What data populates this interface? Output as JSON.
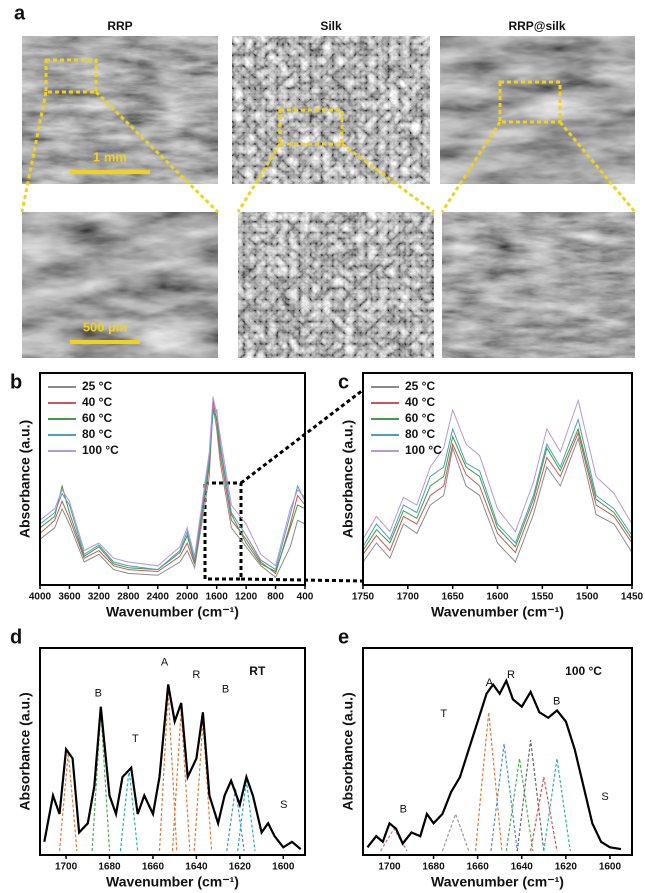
{
  "figure": {
    "panel_labels": [
      "a",
      "b",
      "c",
      "d",
      "e"
    ],
    "sem": {
      "titles": [
        "RRP",
        "Silk",
        "RRP@silk"
      ],
      "scale_bars": [
        "1 mm",
        "500 µm"
      ]
    }
  },
  "chart_data": [
    {
      "type": "line",
      "xlabel": "Wavenumber (cm⁻¹)",
      "ylabel": "Absorbance (a.u.)",
      "xlim": [
        4000,
        400
      ],
      "xticks": [
        4000,
        3600,
        3200,
        2800,
        2400,
        2000,
        1600,
        1200,
        800,
        400
      ],
      "ylim": [
        0,
        1
      ],
      "legend": true,
      "series": [
        {
          "name": "25 °C",
          "color": "#8a8a8a",
          "x": [
            4000,
            3800,
            3700,
            3600,
            3400,
            3200,
            3000,
            2800,
            2400,
            2100,
            2000,
            1900,
            1700,
            1650,
            1600,
            1550,
            1400,
            1200,
            1000,
            800,
            600,
            500,
            400
          ],
          "values": [
            0.22,
            0.28,
            0.38,
            0.3,
            0.1,
            0.14,
            0.06,
            0.04,
            0.03,
            0.1,
            0.16,
            0.07,
            0.55,
            0.92,
            0.8,
            0.62,
            0.28,
            0.18,
            0.08,
            0.02,
            0.18,
            0.32,
            0.3
          ]
        },
        {
          "name": "40 °C",
          "color": "#cc5555",
          "x": [
            4000,
            3800,
            3700,
            3600,
            3400,
            3200,
            3000,
            2800,
            2400,
            2100,
            2000,
            1900,
            1700,
            1650,
            1600,
            1550,
            1400,
            1200,
            1000,
            800,
            600,
            500,
            400
          ],
          "values": [
            0.25,
            0.32,
            0.42,
            0.33,
            0.12,
            0.16,
            0.08,
            0.06,
            0.05,
            0.13,
            0.2,
            0.09,
            0.6,
            0.95,
            0.84,
            0.66,
            0.32,
            0.22,
            0.1,
            0.04,
            0.3,
            0.45,
            0.4
          ]
        },
        {
          "name": "60 °C",
          "color": "#3e9e45",
          "x": [
            4000,
            3800,
            3700,
            3600,
            3400,
            3200,
            3000,
            2800,
            2400,
            2100,
            2000,
            1900,
            1700,
            1650,
            1600,
            1550,
            1400,
            1200,
            1000,
            800,
            600,
            500,
            400
          ],
          "values": [
            0.28,
            0.34,
            0.5,
            0.36,
            0.13,
            0.18,
            0.09,
            0.07,
            0.06,
            0.15,
            0.24,
            0.1,
            0.62,
            0.9,
            0.86,
            0.7,
            0.35,
            0.2,
            0.09,
            0.05,
            0.28,
            0.4,
            0.38
          ]
        },
        {
          "name": "80 °C",
          "color": "#4a9fc0",
          "x": [
            4000,
            3800,
            3700,
            3600,
            3400,
            3200,
            3000,
            2800,
            2400,
            2100,
            2000,
            1900,
            1700,
            1650,
            1600,
            1550,
            1400,
            1200,
            1000,
            800,
            600,
            500,
            400
          ],
          "values": [
            0.3,
            0.36,
            0.46,
            0.4,
            0.14,
            0.19,
            0.1,
            0.08,
            0.06,
            0.16,
            0.26,
            0.11,
            0.65,
            0.88,
            0.9,
            0.72,
            0.36,
            0.24,
            0.11,
            0.06,
            0.35,
            0.5,
            0.42
          ]
        },
        {
          "name": "100 °C",
          "color": "#b897d8",
          "x": [
            4000,
            3800,
            3700,
            3600,
            3400,
            3200,
            3000,
            2800,
            2400,
            2100,
            2000,
            1900,
            1700,
            1650,
            1600,
            1550,
            1400,
            1200,
            1000,
            800,
            600,
            500,
            400
          ],
          "values": [
            0.32,
            0.38,
            0.48,
            0.42,
            0.16,
            0.2,
            0.12,
            0.1,
            0.08,
            0.18,
            0.28,
            0.13,
            0.68,
            0.97,
            0.88,
            0.76,
            0.4,
            0.3,
            0.14,
            0.08,
            0.38,
            0.48,
            0.44
          ]
        }
      ]
    },
    {
      "type": "line",
      "xlabel": "Wavenumber (cm⁻¹)",
      "ylabel": "Absorbance (a.u.)",
      "xlim": [
        1750,
        1450
      ],
      "xticks": [
        1750,
        1700,
        1650,
        1600,
        1550,
        1500,
        1450
      ],
      "ylim": [
        0,
        1
      ],
      "legend": true,
      "series": [
        {
          "name": "25 °C",
          "color": "#8a8a8a",
          "x": [
            1750,
            1735,
            1720,
            1705,
            1690,
            1675,
            1660,
            1650,
            1635,
            1620,
            1600,
            1580,
            1560,
            1545,
            1530,
            1510,
            1490,
            1470,
            1450
          ],
          "values": [
            0.1,
            0.2,
            0.12,
            0.3,
            0.25,
            0.4,
            0.45,
            0.7,
            0.5,
            0.45,
            0.2,
            0.1,
            0.35,
            0.6,
            0.5,
            0.75,
            0.35,
            0.3,
            0.15
          ]
        },
        {
          "name": "40 °C",
          "color": "#cc5555",
          "x": [
            1750,
            1735,
            1720,
            1705,
            1690,
            1675,
            1660,
            1650,
            1635,
            1620,
            1600,
            1580,
            1560,
            1545,
            1530,
            1510,
            1490,
            1470,
            1450
          ],
          "values": [
            0.14,
            0.24,
            0.16,
            0.34,
            0.3,
            0.45,
            0.5,
            0.72,
            0.56,
            0.5,
            0.25,
            0.15,
            0.4,
            0.65,
            0.55,
            0.78,
            0.4,
            0.34,
            0.2
          ]
        },
        {
          "name": "60 °C",
          "color": "#3e9e45",
          "x": [
            1750,
            1735,
            1720,
            1705,
            1690,
            1675,
            1660,
            1650,
            1635,
            1620,
            1600,
            1580,
            1560,
            1545,
            1530,
            1510,
            1490,
            1470,
            1450
          ],
          "values": [
            0.16,
            0.27,
            0.2,
            0.37,
            0.33,
            0.5,
            0.55,
            0.76,
            0.6,
            0.55,
            0.28,
            0.18,
            0.43,
            0.7,
            0.58,
            0.8,
            0.43,
            0.36,
            0.22
          ]
        },
        {
          "name": "80 °C",
          "color": "#4a9fc0",
          "x": [
            1750,
            1735,
            1720,
            1705,
            1690,
            1675,
            1660,
            1650,
            1635,
            1620,
            1600,
            1580,
            1560,
            1545,
            1530,
            1510,
            1490,
            1470,
            1450
          ],
          "values": [
            0.18,
            0.3,
            0.22,
            0.4,
            0.36,
            0.55,
            0.6,
            0.8,
            0.62,
            0.58,
            0.3,
            0.2,
            0.45,
            0.72,
            0.6,
            0.85,
            0.45,
            0.38,
            0.24
          ]
        },
        {
          "name": "100 °C",
          "color": "#b897d8",
          "x": [
            1750,
            1735,
            1720,
            1705,
            1690,
            1675,
            1660,
            1650,
            1635,
            1620,
            1600,
            1580,
            1560,
            1545,
            1530,
            1510,
            1490,
            1470,
            1450
          ],
          "values": [
            0.22,
            0.34,
            0.26,
            0.44,
            0.4,
            0.6,
            0.7,
            0.9,
            0.72,
            0.66,
            0.38,
            0.26,
            0.52,
            0.8,
            0.68,
            0.95,
            0.55,
            0.46,
            0.3
          ]
        }
      ]
    },
    {
      "type": "line",
      "xlabel": "Wavenumber (cm⁻¹)",
      "ylabel": "Absorbance (a.u.)",
      "xlim": [
        1712,
        1590
      ],
      "xticks": [
        1700,
        1680,
        1660,
        1640,
        1620,
        1600
      ],
      "ylim": [
        0,
        1
      ],
      "legend": false,
      "label": "RT",
      "annotations": [
        "B",
        "T",
        "A",
        "R",
        "B",
        "S"
      ],
      "series": [
        {
          "color": "#000000",
          "x": [
            1710,
            1706,
            1703,
            1700,
            1697,
            1694,
            1690,
            1687,
            1684,
            1680,
            1677,
            1674,
            1670,
            1667,
            1664,
            1660,
            1657,
            1653,
            1650,
            1647,
            1644,
            1640,
            1637,
            1634,
            1630,
            1627,
            1624,
            1620,
            1617,
            1614,
            1610,
            1607,
            1604,
            1600,
            1596,
            1592
          ],
          "values": [
            0.05,
            0.3,
            0.2,
            0.55,
            0.5,
            0.1,
            0.15,
            0.35,
            0.78,
            0.3,
            0.2,
            0.4,
            0.45,
            0.2,
            0.3,
            0.2,
            0.4,
            0.9,
            0.7,
            0.8,
            0.4,
            0.5,
            0.75,
            0.3,
            0.15,
            0.3,
            0.38,
            0.25,
            0.4,
            0.3,
            0.1,
            0.15,
            0.08,
            0.02,
            0.05,
            0.01
          ]
        }
      ],
      "components": [
        {
          "color": "#e07b39",
          "x": [
            1703,
            1701,
            1699,
            1697,
            1695
          ],
          "values": [
            0,
            0.27,
            0.53,
            0.27,
            0
          ]
        },
        {
          "color": "#4caf50",
          "x": [
            1688,
            1686,
            1684,
            1682,
            1680
          ],
          "values": [
            0,
            0.38,
            0.76,
            0.38,
            0
          ]
        },
        {
          "color": "#2bb3b3",
          "x": [
            1675,
            1673,
            1671,
            1669,
            1667
          ],
          "values": [
            0,
            0.22,
            0.44,
            0.22,
            0
          ]
        },
        {
          "color": "#e07b39",
          "x": [
            1657,
            1655,
            1653,
            1651,
            1649
          ],
          "values": [
            0,
            0.43,
            0.86,
            0.43,
            0
          ]
        },
        {
          "color": "#e07b39",
          "x": [
            1651,
            1649,
            1647,
            1645,
            1643
          ],
          "values": [
            0,
            0.38,
            0.76,
            0.38,
            0
          ]
        },
        {
          "color": "#e07b39",
          "x": [
            1641,
            1639,
            1637,
            1635,
            1633
          ],
          "values": [
            0,
            0.35,
            0.7,
            0.35,
            0
          ]
        },
        {
          "color": "#4a8fd8",
          "x": [
            1626,
            1624,
            1622,
            1620,
            1618
          ],
          "values": [
            0,
            0.17,
            0.34,
            0.17,
            0
          ]
        },
        {
          "color": "#2bb3b3",
          "x": [
            1621,
            1619,
            1617,
            1615,
            1613
          ],
          "values": [
            0,
            0.19,
            0.38,
            0.19,
            0
          ]
        }
      ]
    },
    {
      "type": "line",
      "xlabel": "Wavenumber (cm⁻¹)",
      "ylabel": "Absorbance (a.u.)",
      "xlim": [
        1712,
        1590
      ],
      "xticks": [
        1700,
        1680,
        1660,
        1640,
        1620,
        1600
      ],
      "ylim": [
        0,
        1
      ],
      "legend": false,
      "label": "100 °C",
      "annotations": [
        "B",
        "T",
        "A",
        "R",
        "B",
        "S"
      ],
      "series": [
        {
          "color": "#000000",
          "x": [
            1710,
            1706,
            1703,
            1700,
            1697,
            1694,
            1690,
            1686,
            1683,
            1680,
            1676,
            1672,
            1668,
            1664,
            1660,
            1656,
            1653,
            1650,
            1647,
            1644,
            1640,
            1636,
            1632,
            1628,
            1624,
            1620,
            1616,
            1612,
            1608,
            1604,
            1600,
            1595
          ],
          "values": [
            0.02,
            0.08,
            0.05,
            0.15,
            0.12,
            0.04,
            0.1,
            0.08,
            0.2,
            0.15,
            0.2,
            0.32,
            0.4,
            0.55,
            0.7,
            0.85,
            0.9,
            0.85,
            0.92,
            0.82,
            0.78,
            0.86,
            0.75,
            0.72,
            0.76,
            0.7,
            0.55,
            0.35,
            0.15,
            0.05,
            0.02,
            0.01
          ]
        }
      ],
      "components": [
        {
          "color": "#d86aa0",
          "x": [
            1704,
            1701,
            1698,
            1695,
            1692
          ],
          "values": [
            0,
            0.06,
            0.12,
            0.06,
            0
          ]
        },
        {
          "color": "#999999",
          "x": [
            1676,
            1673,
            1670,
            1667,
            1664
          ],
          "values": [
            0,
            0.1,
            0.2,
            0.1,
            0
          ]
        },
        {
          "color": "#e07b39",
          "x": [
            1661,
            1658,
            1655,
            1652,
            1649
          ],
          "values": [
            0,
            0.38,
            0.75,
            0.38,
            0
          ]
        },
        {
          "color": "#4a8fd8",
          "x": [
            1654,
            1651,
            1648,
            1645,
            1642
          ],
          "values": [
            0,
            0.29,
            0.58,
            0.29,
            0
          ]
        },
        {
          "color": "#4caf50",
          "x": [
            1647,
            1644,
            1641,
            1638,
            1635
          ],
          "values": [
            0,
            0.25,
            0.5,
            0.25,
            0
          ]
        },
        {
          "color": "#666666",
          "x": [
            1642,
            1639,
            1636,
            1633,
            1630
          ],
          "values": [
            0,
            0.3,
            0.6,
            0.3,
            0
          ]
        },
        {
          "color": "#d9534f",
          "x": [
            1636,
            1633,
            1630,
            1627,
            1624
          ],
          "values": [
            0,
            0.2,
            0.4,
            0.2,
            0
          ]
        },
        {
          "color": "#2bb3b3",
          "x": [
            1630,
            1627,
            1624,
            1621,
            1618
          ],
          "values": [
            0,
            0.25,
            0.5,
            0.25,
            0
          ]
        }
      ]
    }
  ]
}
